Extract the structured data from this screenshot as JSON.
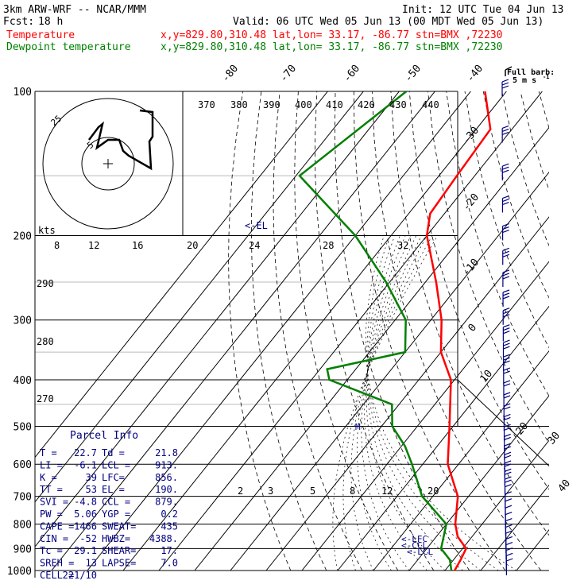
{
  "header": {
    "model": "3km ARW-WRF -- NCAR/MMM",
    "init": "Init: 12 UTC Tue 04 Jun 13",
    "fcst_label": "Fcst:",
    "fcst_value": "18 h",
    "valid": "Valid: 06 UTC Wed 05 Jun 13 (00 MDT Wed 05 Jun 13)",
    "legend": [
      {
        "name": "Temperature",
        "info": "x,y=829.80,310.48   lat,lon= 33.17, -86.77   stn=BMX ,72230",
        "color": "#ff0000"
      },
      {
        "name": "Dewpoint temperature",
        "info": "x,y=829.80,310.48   lat,lon= 33.17, -86.77   stn=BMX ,72230",
        "color": "#008000"
      }
    ]
  },
  "barb_key": {
    "title": "Full barb:",
    "value": "5 m s",
    "exponent": "-1"
  },
  "hodograph": {
    "kts_label": "kts",
    "ring_label": "25",
    "inner_label": "5"
  },
  "el_marker": "<-EL",
  "lfc_marker": "<-LFC",
  "ccl_marker": "<-CCL",
  "lcl_marker": "<-LCL",
  "m_marker": "M",
  "parcel_info": {
    "title": "Parcel Info",
    "rows": [
      [
        "T  =",
        "22.7",
        "Td =",
        "21.8"
      ],
      [
        "LI =",
        "-6.1",
        "LCL =",
        "913."
      ],
      [
        "K  =",
        "39",
        "LFC=",
        "856."
      ],
      [
        "TT =",
        "53",
        "EL =",
        "190."
      ],
      [
        "SVI =",
        "-4.8",
        "CCL =",
        "879."
      ],
      [
        "PW =",
        "5.06",
        "YGP =",
        "0.2"
      ],
      [
        "CAPE =",
        "1466",
        "SWEAT=",
        "435"
      ],
      [
        "CIN =",
        "-52",
        "HWBZ=",
        "4388."
      ],
      [
        "Tc =",
        "29.1",
        "SHEAR=",
        "17."
      ],
      [
        "SREH =",
        "13",
        "LAPSE=",
        "7.0"
      ],
      [
        "CELL =",
        "221/10",
        "",
        ""
      ]
    ]
  },
  "chart_data": {
    "type": "skew-T log-p sounding",
    "y_axis": {
      "label": "pressure (hPa)",
      "ticks": [
        100,
        200,
        300,
        400,
        500,
        600,
        700,
        800,
        900,
        1000
      ]
    },
    "isotherm_labels_top": [
      "-80",
      "-70",
      "-60",
      "-50",
      "-40"
    ],
    "isotherm_labels_right": [
      "-30",
      "-20",
      "-10",
      "0",
      "10",
      "20",
      "30",
      "40"
    ],
    "theta_labels": [
      "370",
      "380",
      "390",
      "400",
      "410",
      "420",
      "430",
      "440"
    ],
    "theta_left_labels": [
      "290",
      "280",
      "270"
    ],
    "mixing_ratio_labels_upper": [
      "8",
      "12",
      "16",
      "20",
      "24",
      "28",
      "32"
    ],
    "mixing_ratio_labels_lower": [
      "2",
      "3",
      "5",
      "8",
      "12",
      "20"
    ],
    "series": [
      {
        "name": "Temperature",
        "color": "#ff0000",
        "points": [
          [
            100,
            -76
          ],
          [
            120,
            -66
          ],
          [
            150,
            -65
          ],
          [
            180,
            -64
          ],
          [
            200,
            -60
          ],
          [
            250,
            -47
          ],
          [
            300,
            -37
          ],
          [
            350,
            -30
          ],
          [
            400,
            -21
          ],
          [
            500,
            -11
          ],
          [
            600,
            -3
          ],
          [
            700,
            7
          ],
          [
            800,
            12.5
          ],
          [
            850,
            16
          ],
          [
            900,
            21
          ],
          [
            950,
            22
          ],
          [
            1000,
            22.7
          ]
        ]
      },
      {
        "name": "Dewpoint temperature",
        "color": "#008000",
        "points": [
          [
            100,
            -98
          ],
          [
            150,
            -109
          ],
          [
            200,
            -80
          ],
          [
            250,
            -61
          ],
          [
            300,
            -47
          ],
          [
            350,
            -40
          ],
          [
            380,
            -58
          ],
          [
            400,
            -55
          ],
          [
            450,
            -32
          ],
          [
            500,
            -27
          ],
          [
            550,
            -19
          ],
          [
            600,
            -13
          ],
          [
            700,
            -3
          ],
          [
            800,
            10
          ],
          [
            900,
            14
          ],
          [
            950,
            19
          ],
          [
            1000,
            21.8
          ]
        ]
      }
    ],
    "wind_barbs": "plotted at right edge from 100 to 1000 hPa (mostly 5-25 m/s)"
  },
  "colors": {
    "temperature": "#ff0000",
    "dewpoint": "#008000",
    "barbs": "#000080",
    "labels": "#000080",
    "background": "#ffffff",
    "grid": "#000000"
  }
}
